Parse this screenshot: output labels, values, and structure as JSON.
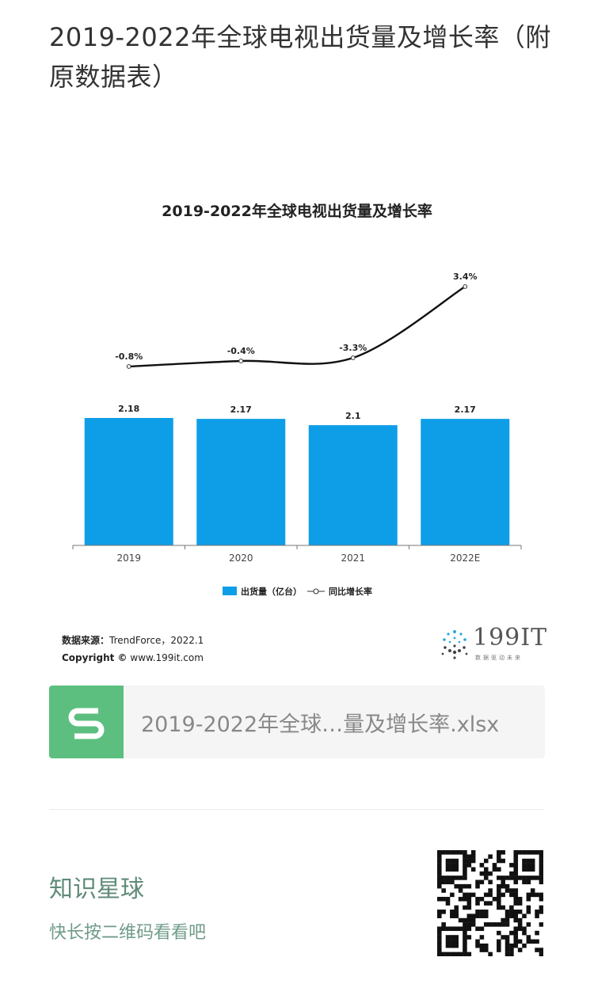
{
  "page": {
    "title": "2019-2022年全球电视出货量及增长率（附原数据表）"
  },
  "chart_data": {
    "type": "bar",
    "title": "2019-2022年全球电视出货量及增长率",
    "categories": [
      "2019",
      "2020",
      "2021",
      "2022E"
    ],
    "series": [
      {
        "name": "出货量（亿台）",
        "type": "bar",
        "values": [
          2.18,
          2.17,
          2.1,
          2.17
        ],
        "labels": [
          "2.18",
          "2.17",
          "2.1",
          "2.17"
        ],
        "color": "#0e9ee8"
      },
      {
        "name": "同比增长率",
        "type": "line",
        "values": [
          -0.8,
          -0.4,
          -3.3,
          3.4
        ],
        "labels": [
          "-0.8%",
          "-0.4%",
          "-3.3%",
          "3.4%"
        ],
        "color": "#111111"
      }
    ],
    "legend": "bottom"
  },
  "footer": {
    "source_label": "数据来源：",
    "source_value": "TrendForce，2022.1",
    "copyright_label": "Copyright ©",
    "copyright_value": "www.199it.com",
    "logo_text": "199IT",
    "logo_tagline": "数据驱动未来"
  },
  "file": {
    "name": "2019-2022年全球…量及增长率.xlsx",
    "icon": "spreadsheet-s-icon",
    "color": "#5cbf80"
  },
  "promo": {
    "title": "知识星球",
    "subtitle": "快长按二维码看看吧"
  }
}
